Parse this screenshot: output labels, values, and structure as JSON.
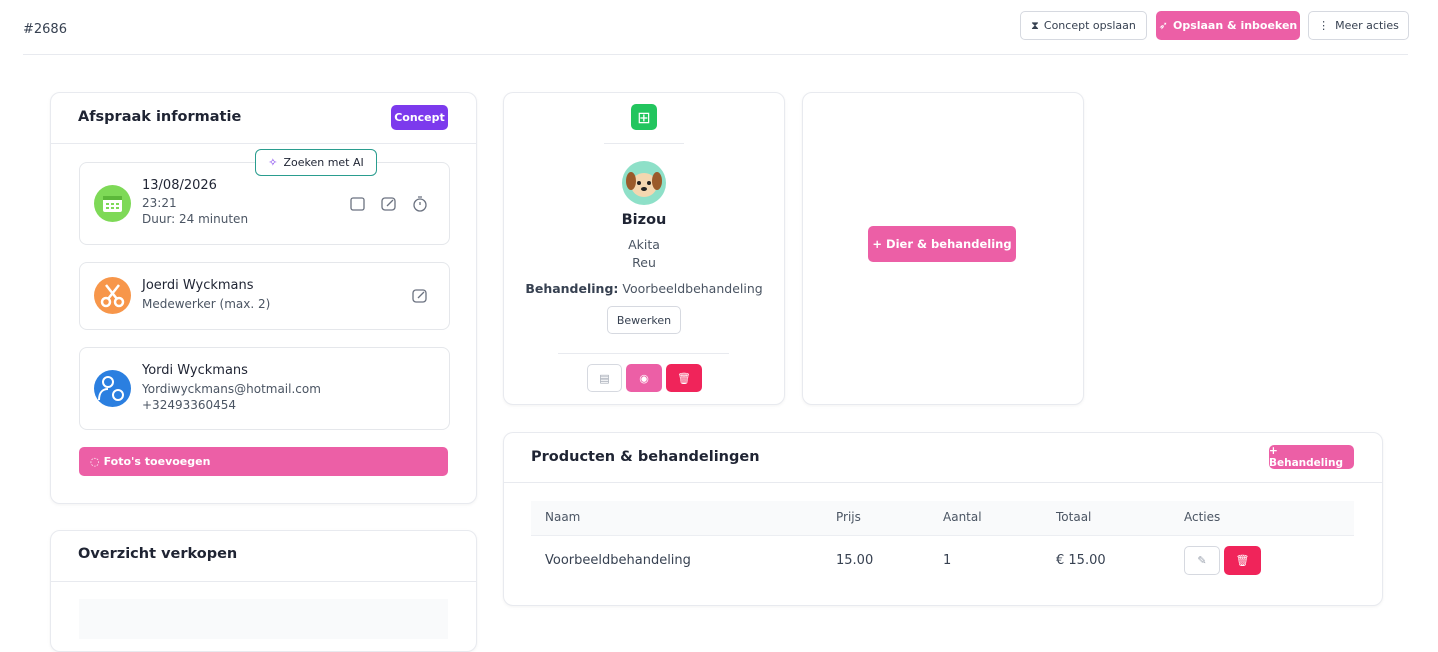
{
  "header": {
    "id": "#2686",
    "buttons": [
      "Concept opslaan",
      "Opslaan & inboeken",
      "Meer acties"
    ]
  },
  "appointment": {
    "title": "Afspraak informatie",
    "status": "Concept",
    "ai_search": "Zoeken met AI",
    "date": "13/08/2026",
    "time": "23:21",
    "duration": "Duur: 24 minuten",
    "employee": {
      "name": "Joerdi Wyckmans",
      "role": "Medewerker (max. 2)"
    },
    "customer": {
      "name": "Yordi Wyckmans",
      "email": "Yordiwyckmans@hotmail.com",
      "phone": "+32493360454"
    },
    "photos_button": "Foto's toevoegen"
  },
  "sales": {
    "title": "Overzicht verkopen"
  },
  "pet": {
    "name": "Bizou",
    "breed": "Akita",
    "sex": "Reu",
    "treatment_label": "Behandeling:",
    "treatment": "Voorbeeldbehandeling",
    "edit_button": "Bewerken"
  },
  "add_pet_button": "+ Dier & behandeling",
  "products": {
    "title": "Producten & behandelingen",
    "add_button": "+ Behandeling",
    "table": {
      "headers": [
        "Naam",
        "Prijs",
        "Aantal",
        "Totaal",
        "Acties"
      ],
      "rows": [
        [
          "Voorbeeldbehandeling",
          "15.00",
          "1",
          "€ 15.00"
        ]
      ]
    }
  }
}
